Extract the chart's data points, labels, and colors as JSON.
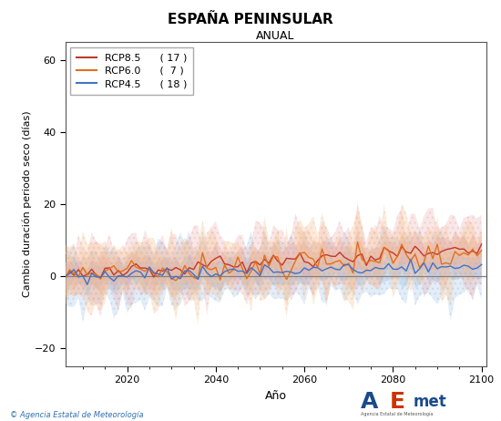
{
  "title": "ESPAÑA PENINSULAR",
  "subtitle": "ANUAL",
  "xlabel": "Año",
  "ylabel": "Cambio duración periodo seco (días)",
  "xlim": [
    2006,
    2101
  ],
  "ylim": [
    -25,
    65
  ],
  "yticks": [
    -20,
    0,
    20,
    40,
    60
  ],
  "xticks": [
    2020,
    2040,
    2060,
    2080,
    2100
  ],
  "legend_entries": [
    {
      "label": "RCP8.5",
      "count": "( 17 )",
      "color": "#c0392b"
    },
    {
      "label": "RCP6.0",
      "count": "(  7 )",
      "color": "#e07020"
    },
    {
      "label": "RCP4.5",
      "count": "( 18 )",
      "color": "#4472c4"
    }
  ],
  "rcp85_color": "#c0392b",
  "rcp60_color": "#e07020",
  "rcp45_color": "#4472c4",
  "rcp85_fill": "#e8a0a0",
  "rcp60_fill": "#f5c090",
  "rcp45_fill": "#90b8e0",
  "background_color": "#ffffff",
  "plot_bg_color": "#ffffff",
  "seed": 42,
  "start_year": 2006,
  "end_year": 2100,
  "footer_text": "© Agencia Estatal de Meteorología",
  "footer_color": "#3070b0"
}
